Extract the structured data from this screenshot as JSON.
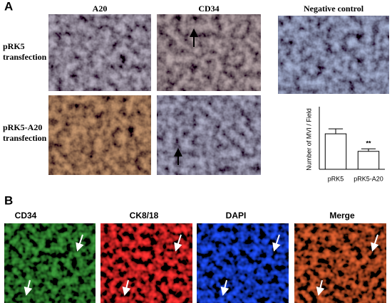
{
  "panel_a": {
    "label": "A",
    "column_headers": [
      "A20",
      "CD34",
      "Negative control"
    ],
    "row_labels": [
      [
        "pRK5",
        "transfection"
      ],
      [
        "pRK5-A20",
        "transfection"
      ]
    ]
  },
  "chart_data": {
    "type": "bar",
    "ylabel": "Number of MVI / Field",
    "categories": [
      "pRK5",
      "pRK5-A20"
    ],
    "values": [
      8.5,
      4.3
    ],
    "errors": [
      1.2,
      0.6
    ],
    "annotations": [
      null,
      "**"
    ],
    "color": "#ffffff",
    "ylim": [
      0,
      15
    ]
  },
  "panel_b": {
    "label": "B",
    "column_headers": [
      "CD34",
      "CK8/18",
      "DAPI",
      "Merge"
    ]
  }
}
